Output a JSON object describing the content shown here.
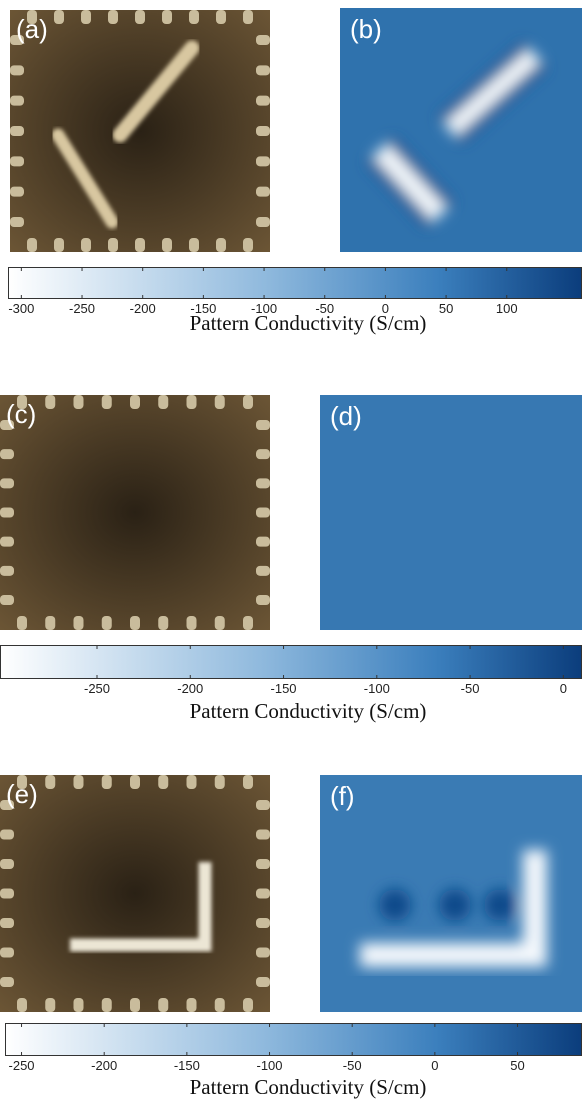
{
  "figure": {
    "rows": [
      {
        "photo_label": "(a)",
        "map_label": "(b)",
        "colorbar": {
          "range": [
            -311,
            162
          ],
          "ticks": [
            -300,
            -250,
            -200,
            -150,
            -100,
            -50,
            0,
            50,
            100
          ],
          "label": "Pattern Conductivity (S/cm)"
        }
      },
      {
        "photo_label": "(c)",
        "map_label": "(d)",
        "colorbar": {
          "range": [
            -302,
            10
          ],
          "ticks": [
            -250,
            -200,
            -150,
            -100,
            -50,
            0
          ],
          "label": "Pattern Conductivity (S/cm)"
        }
      },
      {
        "photo_label": "(e)",
        "map_label": "(f)",
        "colorbar": {
          "range": [
            -260,
            89
          ],
          "ticks": [
            -250,
            -200,
            -150,
            -100,
            -50,
            0,
            50
          ],
          "label": "Pattern Conductivity (S/cm)"
        }
      }
    ]
  }
}
